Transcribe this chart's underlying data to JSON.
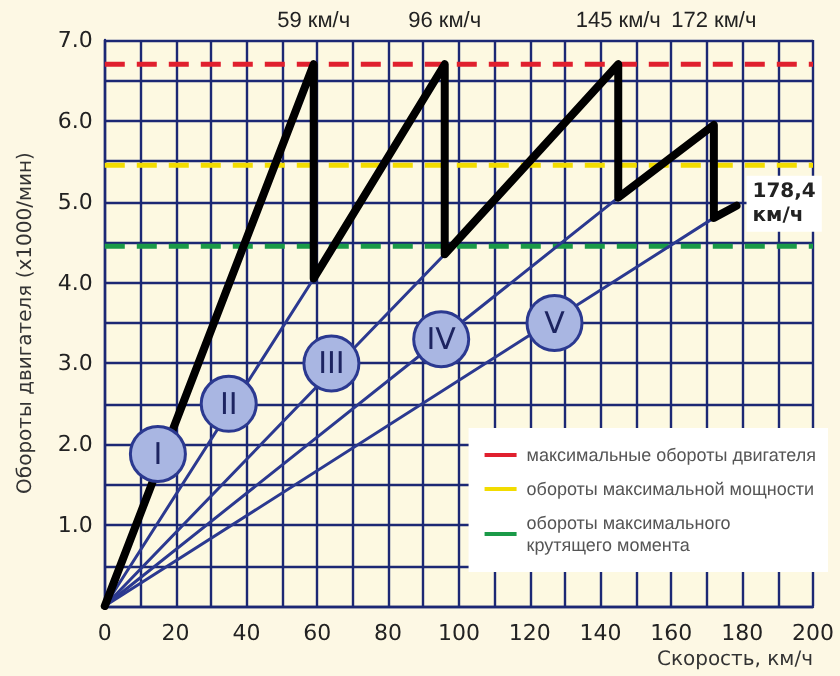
{
  "chart_data": {
    "type": "line",
    "xlabel": "Скорость, км/ч",
    "ylabel": "Обороты двигателя (x1000/мин)",
    "x": [
      0,
      59,
      59,
      96,
      96,
      145,
      145,
      172,
      172,
      178.4
    ],
    "series": [
      {
        "color": "#000000",
        "values": [
          0,
          6.7,
          4.05,
          6.7,
          4.35,
          6.7,
          5.05,
          5.95,
          4.8,
          4.95
        ]
      },
      {
        "color": "#2b3990",
        "x": [
          0,
          59
        ],
        "values": [
          0,
          4.05
        ]
      },
      {
        "color": "#2b3990",
        "x": [
          0,
          96
        ],
        "values": [
          0,
          4.35
        ]
      },
      {
        "color": "#2b3990",
        "x": [
          0,
          145
        ],
        "values": [
          0,
          5.05
        ]
      },
      {
        "color": "#2b3990",
        "x": [
          0,
          172
        ],
        "values": [
          0,
          4.8
        ]
      }
    ],
    "xlim": [
      0,
      200
    ],
    "xticks": [
      0,
      20,
      40,
      60,
      80,
      100,
      120,
      140,
      160,
      180,
      200
    ],
    "ylim": [
      0,
      7
    ],
    "yticks": [
      {
        "value": 0,
        "label": null
      },
      {
        "value": 1,
        "label": "1.0"
      },
      {
        "value": 2,
        "label": "2.0"
      },
      {
        "value": 3,
        "label": "3.0"
      },
      {
        "value": 4,
        "label": "4.0"
      },
      {
        "value": 5,
        "label": "5.0"
      },
      {
        "value": 6,
        "label": "6.0"
      },
      {
        "value": 7,
        "label": "7.0"
      }
    ],
    "ref_lines": [
      {
        "axis": "y",
        "value": 6.7,
        "label": "максимальные обороты двигателя",
        "color": "#e0202e",
        "line_style": "dashed"
      },
      {
        "axis": "y",
        "value": 5.45,
        "label": "обороты максимальной мощности",
        "color": "#f2dc00",
        "line_style": "dashed"
      },
      {
        "axis": "y",
        "value": 4.45,
        "label": "обороты максимального крутящего момента",
        "color": "#1a9a48",
        "line_style": "dashed"
      }
    ],
    "annotations": [
      "59 км/ч",
      "96 км/ч",
      "145 км/ч",
      "172 км/ч",
      {
        "text": "178,4 км/ч",
        "x": 178.4,
        "y": 4.95
      },
      {
        "text": "I",
        "x": 15,
        "y": 1.88
      },
      {
        "text": "II",
        "x": 35,
        "y": 2.5
      },
      {
        "text": "III",
        "x": 64,
        "y": 3.0
      },
      {
        "text": "IV",
        "x": 95,
        "y": 3.3
      },
      {
        "text": "V",
        "x": 127,
        "y": 3.5
      }
    ],
    "grid": true,
    "legend": "bottom right",
    "marker": "none",
    "line_style": "solid"
  }
}
